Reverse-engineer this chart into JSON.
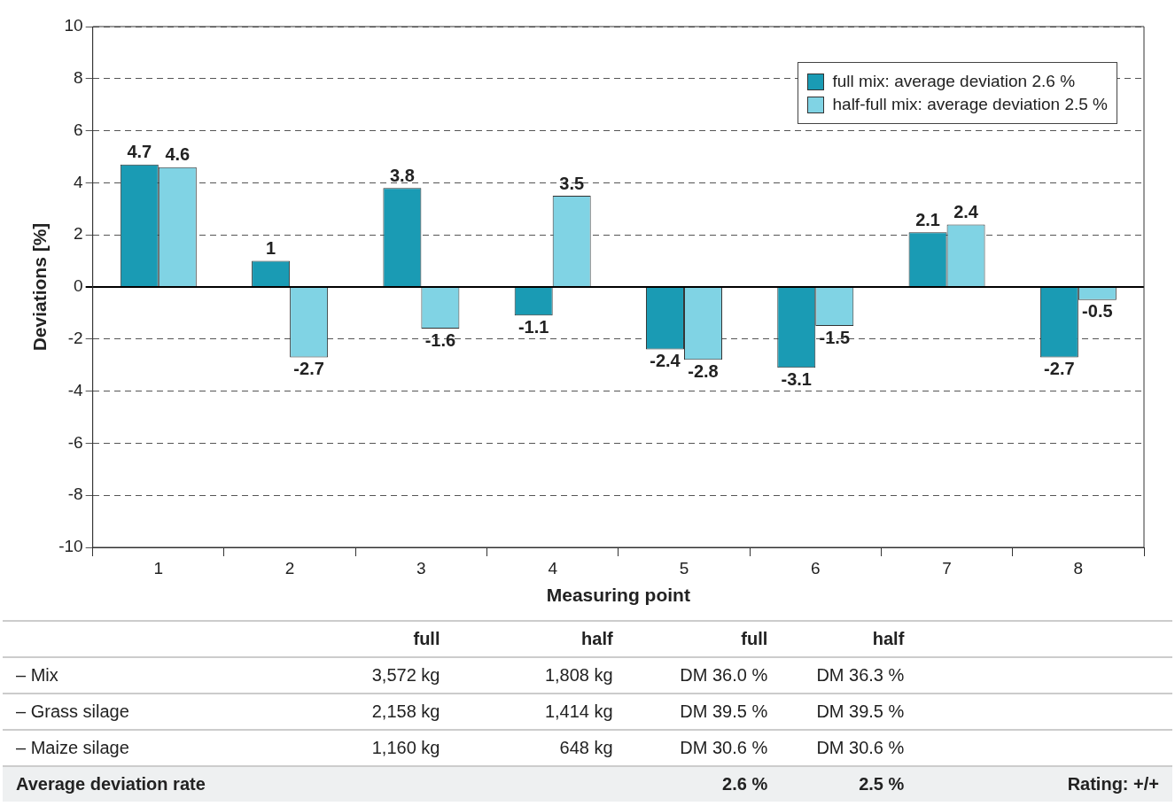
{
  "chart_data": {
    "type": "bar",
    "xlabel": "Measuring point",
    "ylabel": "Deviations [%]",
    "categories": [
      "1",
      "2",
      "3",
      "4",
      "5",
      "6",
      "7",
      "8"
    ],
    "series": [
      {
        "name": "full mix: average deviation 2.6 %",
        "color": "#1a9bb4",
        "values": [
          4.7,
          1,
          3.8,
          -1.1,
          -2.4,
          -3.1,
          2.1,
          -2.7
        ]
      },
      {
        "name": "half-full mix: average deviation 2.5 %",
        "color": "#80d3e4",
        "values": [
          4.6,
          -2.7,
          -1.6,
          3.5,
          -2.8,
          -1.5,
          2.4,
          -0.5
        ]
      }
    ],
    "ylim": [
      -10,
      10
    ],
    "yticks": [
      -10,
      -8,
      -6,
      -4,
      -2,
      0,
      2,
      4,
      6,
      8,
      10
    ],
    "grid": "y",
    "line_style": "dashed",
    "legend": "top right",
    "data_labels": true,
    "annotations": [
      "full",
      "half",
      "full",
      "half",
      "– Mix",
      "3,572 kg",
      "1,808 kg",
      "DM 36.0 %",
      "DM 36.3 %",
      "– Grass silage",
      "2,158 kg",
      "1,414 kg",
      "DM 39.5 %",
      "DM 39.5 %",
      "– Maize silage",
      "1,160 kg",
      "648 kg",
      "DM 30.6 %",
      "DM 30.6 %",
      "Average deviation rate",
      "2.6 %",
      "2.5 %",
      "Rating: +/+"
    ]
  }
}
